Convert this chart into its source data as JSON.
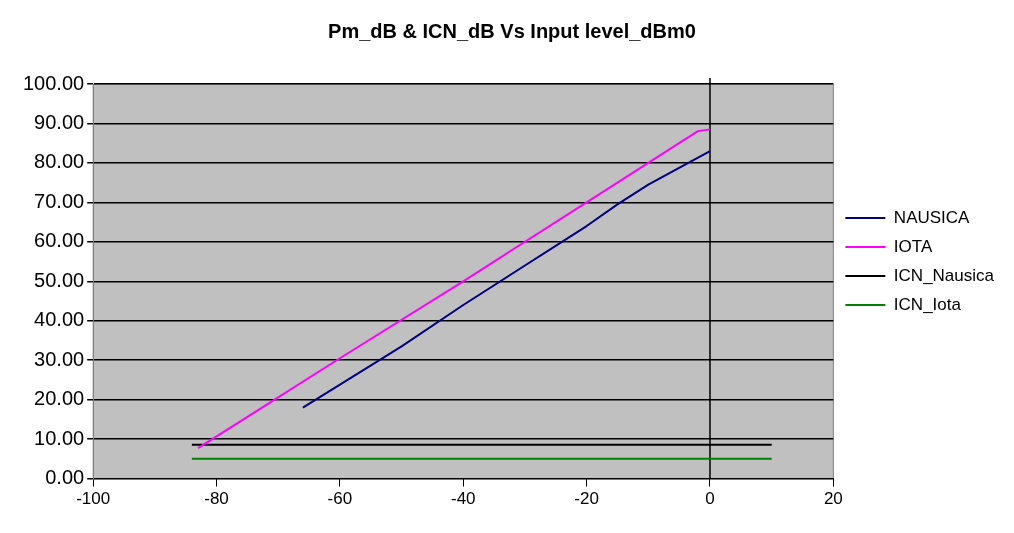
{
  "chart_data": {
    "type": "line",
    "title": "Pm_dB & ICN_dB Vs Input level_dBm0",
    "series": [
      {
        "name": "NAUSICA",
        "color": "#000080",
        "x": [
          -66,
          -50,
          -40,
          -30,
          -20,
          -15,
          -10,
          0
        ],
        "values": [
          18,
          33.5,
          44,
          54,
          64,
          69.5,
          74.5,
          83
        ]
      },
      {
        "name": "IOTA",
        "color": "#ff00ff",
        "x": [
          -83,
          -60,
          -40,
          -20,
          -10,
          -5,
          -2,
          0
        ],
        "values": [
          7.7,
          30.5,
          50,
          70,
          80,
          85,
          88,
          88.5
        ]
      },
      {
        "name": "ICN_Nausica",
        "color": "#000000",
        "x": [
          -84,
          10
        ],
        "values": [
          8.6,
          8.6
        ]
      },
      {
        "name": "ICN_Iota",
        "color": "#008000",
        "x": [
          -84,
          10
        ],
        "values": [
          5,
          5
        ]
      }
    ],
    "xlim": [
      -100,
      20
    ],
    "xticks": [
      -100,
      -80,
      -60,
      -40,
      -20,
      0,
      20
    ],
    "ylim": [
      0,
      100
    ],
    "yticks": [
      {
        "value": 0,
        "label": "0.00"
      },
      {
        "value": 10,
        "label": "10.00"
      },
      {
        "value": 20,
        "label": "20.00"
      },
      {
        "value": 30,
        "label": "30.00"
      },
      {
        "value": 40,
        "label": "40.00"
      },
      {
        "value": 50,
        "label": "50.00"
      },
      {
        "value": 60,
        "label": "60.00"
      },
      {
        "value": 70,
        "label": "70.00"
      },
      {
        "value": 80,
        "label": "80.00"
      },
      {
        "value": 90,
        "label": "90.00"
      },
      {
        "value": 100,
        "label": "100.00"
      }
    ],
    "ref_lines": [
      {
        "axis": "x",
        "value": 0,
        "color": "#000000"
      }
    ],
    "grid": "y",
    "legend": "right",
    "marker": "none",
    "line_style": "solid"
  }
}
